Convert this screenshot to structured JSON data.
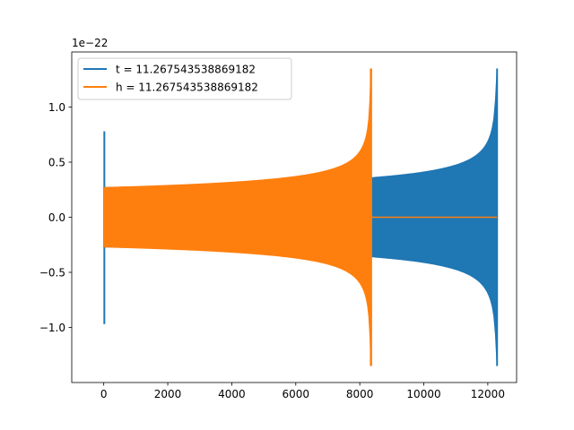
{
  "chart_data": {
    "type": "line",
    "title": "",
    "xlabel": "",
    "ylabel": "",
    "y_offset_text": "1e−22",
    "xlim": [
      -1000,
      12900
    ],
    "ylim": [
      -1.5,
      1.5
    ],
    "x_ticks": [
      0,
      2000,
      4000,
      6000,
      8000,
      10000,
      12000
    ],
    "x_tick_labels": [
      "0",
      "2000",
      "4000",
      "6000",
      "8000",
      "10000",
      "12000"
    ],
    "y_ticks": [
      1.0,
      0.5,
      0.0,
      -0.5,
      -1.0
    ],
    "y_tick_labels": [
      "1.0",
      "0.5",
      "0.0",
      "−0.5",
      "−1.0"
    ],
    "grid": false,
    "legend_position": "top-left",
    "series": [
      {
        "name": "t = 11.267543538869182",
        "color": "#1f77b4",
        "profile": "two-sided chirp",
        "start_spike": {
          "x_range": [
            -10,
            10
          ],
          "y_max": 0.78,
          "y_min": -0.97
        },
        "envelope": {
          "x": [
            0,
            12290
          ],
          "amp_start": 0.27,
          "amp_end": 1.35,
          "x_at_merger": 12290,
          "y_at_end": 0.0
        }
      },
      {
        "name": "h = 11.267543538869182",
        "color": "#ff7f0e",
        "profile": "chirp then flat zero",
        "envelope": {
          "x": [
            0,
            8350
          ],
          "amp_start": 0.27,
          "amp_end": 1.35,
          "x_at_merger": 8350
        },
        "flat_tail": {
          "x": [
            8350,
            12290
          ],
          "y": 0.0
        }
      }
    ]
  }
}
